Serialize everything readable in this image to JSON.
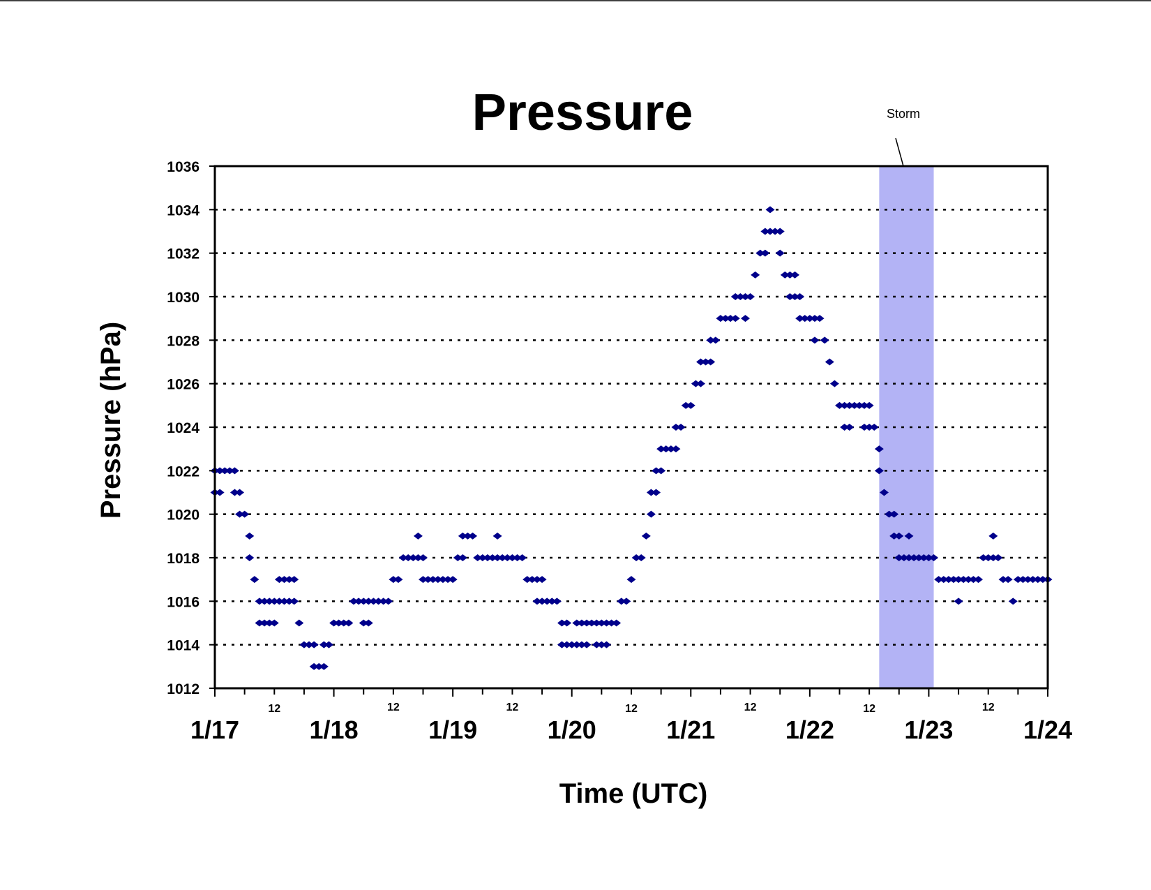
{
  "chart_data": {
    "type": "scatter",
    "title": "Pressure",
    "xlabel": "Time (UTC)",
    "ylabel": "Pressure (hPa)",
    "ylim": [
      1012,
      1036
    ],
    "yticks": [
      "1012",
      "1014",
      "1016",
      "1018",
      "1020",
      "1022",
      "1024",
      "1026",
      "1028",
      "1030",
      "1032",
      "1034",
      "1036"
    ],
    "xlim": [
      "1/17 00:00",
      "1/24 00:00"
    ],
    "x_major_labels": [
      "1/17",
      "1/18",
      "1/19",
      "1/20",
      "1/21",
      "1/22",
      "1/23",
      "1/24"
    ],
    "x_minor_label": "12",
    "x_minor_labels": [
      "12",
      "12",
      "12",
      "12",
      "12",
      "12",
      "12"
    ],
    "grid": "dotted horizontal lines",
    "marker_color": "#00008B",
    "annotation": {
      "text": "Storm",
      "x_start": "1/22 14:00",
      "x_end": "1/23 01:00",
      "color": "#B3B3F5"
    },
    "series": [
      {
        "points_note_units": "x = hours after 1/17 00:00 UTC, y = hPa",
        "points": [
          [
            0,
            1022
          ],
          [
            1,
            1022
          ],
          [
            2,
            1022
          ],
          [
            3,
            1022
          ],
          [
            4,
            1022
          ],
          [
            0,
            1021
          ],
          [
            1,
            1021
          ],
          [
            4,
            1021
          ],
          [
            5,
            1021
          ],
          [
            5,
            1020
          ],
          [
            6,
            1020
          ],
          [
            7,
            1019
          ],
          [
            7,
            1018
          ],
          [
            8,
            1017
          ],
          [
            9,
            1016
          ],
          [
            10,
            1016
          ],
          [
            11,
            1016
          ],
          [
            12,
            1016
          ],
          [
            13,
            1016
          ],
          [
            14,
            1016
          ],
          [
            15,
            1016
          ],
          [
            16,
            1016
          ],
          [
            9,
            1015
          ],
          [
            10,
            1015
          ],
          [
            11,
            1015
          ],
          [
            12,
            1015
          ],
          [
            13,
            1017
          ],
          [
            14,
            1017
          ],
          [
            15,
            1017
          ],
          [
            16,
            1017
          ],
          [
            17,
            1015
          ],
          [
            18,
            1014
          ],
          [
            19,
            1014
          ],
          [
            20,
            1014
          ],
          [
            20,
            1013
          ],
          [
            21,
            1013
          ],
          [
            22,
            1013
          ],
          [
            22,
            1014
          ],
          [
            23,
            1014
          ],
          [
            24,
            1015
          ],
          [
            25,
            1015
          ],
          [
            26,
            1015
          ],
          [
            27,
            1015
          ],
          [
            28,
            1016
          ],
          [
            29,
            1016
          ],
          [
            30,
            1016
          ],
          [
            30,
            1015
          ],
          [
            31,
            1015
          ],
          [
            31,
            1016
          ],
          [
            32,
            1016
          ],
          [
            33,
            1016
          ],
          [
            34,
            1016
          ],
          [
            35,
            1016
          ],
          [
            36,
            1017
          ],
          [
            37,
            1017
          ],
          [
            38,
            1018
          ],
          [
            39,
            1018
          ],
          [
            40,
            1018
          ],
          [
            41,
            1018
          ],
          [
            41,
            1019
          ],
          [
            42,
            1018
          ],
          [
            42,
            1017
          ],
          [
            43,
            1017
          ],
          [
            44,
            1017
          ],
          [
            45,
            1017
          ],
          [
            46,
            1017
          ],
          [
            47,
            1017
          ],
          [
            48,
            1017
          ],
          [
            49,
            1018
          ],
          [
            50,
            1018
          ],
          [
            50,
            1019
          ],
          [
            51,
            1019
          ],
          [
            52,
            1019
          ],
          [
            53,
            1018
          ],
          [
            54,
            1018
          ],
          [
            55,
            1018
          ],
          [
            56,
            1018
          ],
          [
            57,
            1018
          ],
          [
            57,
            1019
          ],
          [
            58,
            1018
          ],
          [
            59,
            1018
          ],
          [
            60,
            1018
          ],
          [
            61,
            1018
          ],
          [
            62,
            1018
          ],
          [
            63,
            1017
          ],
          [
            64,
            1017
          ],
          [
            65,
            1017
          ],
          [
            66,
            1017
          ],
          [
            65,
            1016
          ],
          [
            66,
            1016
          ],
          [
            67,
            1016
          ],
          [
            68,
            1016
          ],
          [
            69,
            1016
          ],
          [
            70,
            1015
          ],
          [
            71,
            1015
          ],
          [
            70,
            1014
          ],
          [
            71,
            1014
          ],
          [
            72,
            1014
          ],
          [
            73,
            1014
          ],
          [
            73,
            1015
          ],
          [
            74,
            1015
          ],
          [
            74,
            1014
          ],
          [
            75,
            1014
          ],
          [
            75,
            1015
          ],
          [
            76,
            1015
          ],
          [
            77,
            1015
          ],
          [
            77,
            1014
          ],
          [
            78,
            1014
          ],
          [
            78,
            1015
          ],
          [
            79,
            1015
          ],
          [
            79,
            1014
          ],
          [
            80,
            1015
          ],
          [
            81,
            1015
          ],
          [
            82,
            1016
          ],
          [
            83,
            1016
          ],
          [
            84,
            1017
          ],
          [
            85,
            1018
          ],
          [
            86,
            1018
          ],
          [
            87,
            1019
          ],
          [
            88,
            1020
          ],
          [
            88,
            1021
          ],
          [
            89,
            1021
          ],
          [
            89,
            1022
          ],
          [
            90,
            1022
          ],
          [
            90,
            1023
          ],
          [
            91,
            1023
          ],
          [
            92,
            1023
          ],
          [
            93,
            1023
          ],
          [
            93,
            1024
          ],
          [
            94,
            1024
          ],
          [
            95,
            1025
          ],
          [
            96,
            1025
          ],
          [
            97,
            1026
          ],
          [
            98,
            1026
          ],
          [
            98,
            1027
          ],
          [
            99,
            1027
          ],
          [
            100,
            1027
          ],
          [
            100,
            1028
          ],
          [
            101,
            1028
          ],
          [
            102,
            1029
          ],
          [
            103,
            1029
          ],
          [
            104,
            1029
          ],
          [
            105,
            1029
          ],
          [
            105,
            1030
          ],
          [
            106,
            1030
          ],
          [
            107,
            1030
          ],
          [
            108,
            1030
          ],
          [
            107,
            1029
          ],
          [
            109,
            1031
          ],
          [
            110,
            1032
          ],
          [
            111,
            1032
          ],
          [
            111,
            1033
          ],
          [
            112,
            1033
          ],
          [
            113,
            1033
          ],
          [
            114,
            1033
          ],
          [
            112,
            1034
          ],
          [
            114,
            1032
          ],
          [
            115,
            1031
          ],
          [
            116,
            1031
          ],
          [
            117,
            1031
          ],
          [
            116,
            1030
          ],
          [
            117,
            1030
          ],
          [
            118,
            1030
          ],
          [
            118,
            1029
          ],
          [
            119,
            1029
          ],
          [
            120,
            1029
          ],
          [
            121,
            1029
          ],
          [
            122,
            1029
          ],
          [
            121,
            1028
          ],
          [
            123,
            1028
          ],
          [
            124,
            1027
          ],
          [
            125,
            1026
          ],
          [
            126,
            1025
          ],
          [
            127,
            1025
          ],
          [
            128,
            1025
          ],
          [
            129,
            1025
          ],
          [
            130,
            1025
          ],
          [
            131,
            1025
          ],
          [
            132,
            1025
          ],
          [
            127,
            1024
          ],
          [
            128,
            1024
          ],
          [
            131,
            1024
          ],
          [
            132,
            1024
          ],
          [
            133,
            1024
          ],
          [
            134,
            1023
          ],
          [
            134,
            1022
          ],
          [
            135,
            1021
          ],
          [
            136,
            1020
          ],
          [
            137,
            1020
          ],
          [
            137,
            1019
          ],
          [
            138,
            1019
          ],
          [
            138,
            1018
          ],
          [
            139,
            1018
          ],
          [
            140,
            1018
          ],
          [
            140,
            1019
          ],
          [
            141,
            1018
          ],
          [
            142,
            1018
          ],
          [
            143,
            1018
          ],
          [
            144,
            1018
          ],
          [
            145,
            1018
          ],
          [
            146,
            1017
          ],
          [
            147,
            1017
          ],
          [
            148,
            1017
          ],
          [
            149,
            1017
          ],
          [
            150,
            1017
          ],
          [
            151,
            1017
          ],
          [
            152,
            1017
          ],
          [
            153,
            1017
          ],
          [
            154,
            1017
          ],
          [
            150,
            1016
          ],
          [
            155,
            1018
          ],
          [
            156,
            1018
          ],
          [
            157,
            1018
          ],
          [
            157,
            1019
          ],
          [
            158,
            1018
          ],
          [
            159,
            1017
          ],
          [
            160,
            1017
          ],
          [
            161,
            1016
          ],
          [
            162,
            1017
          ],
          [
            163,
            1017
          ],
          [
            164,
            1017
          ],
          [
            165,
            1017
          ],
          [
            166,
            1017
          ],
          [
            167,
            1017
          ],
          [
            168,
            1017
          ]
        ]
      }
    ]
  }
}
